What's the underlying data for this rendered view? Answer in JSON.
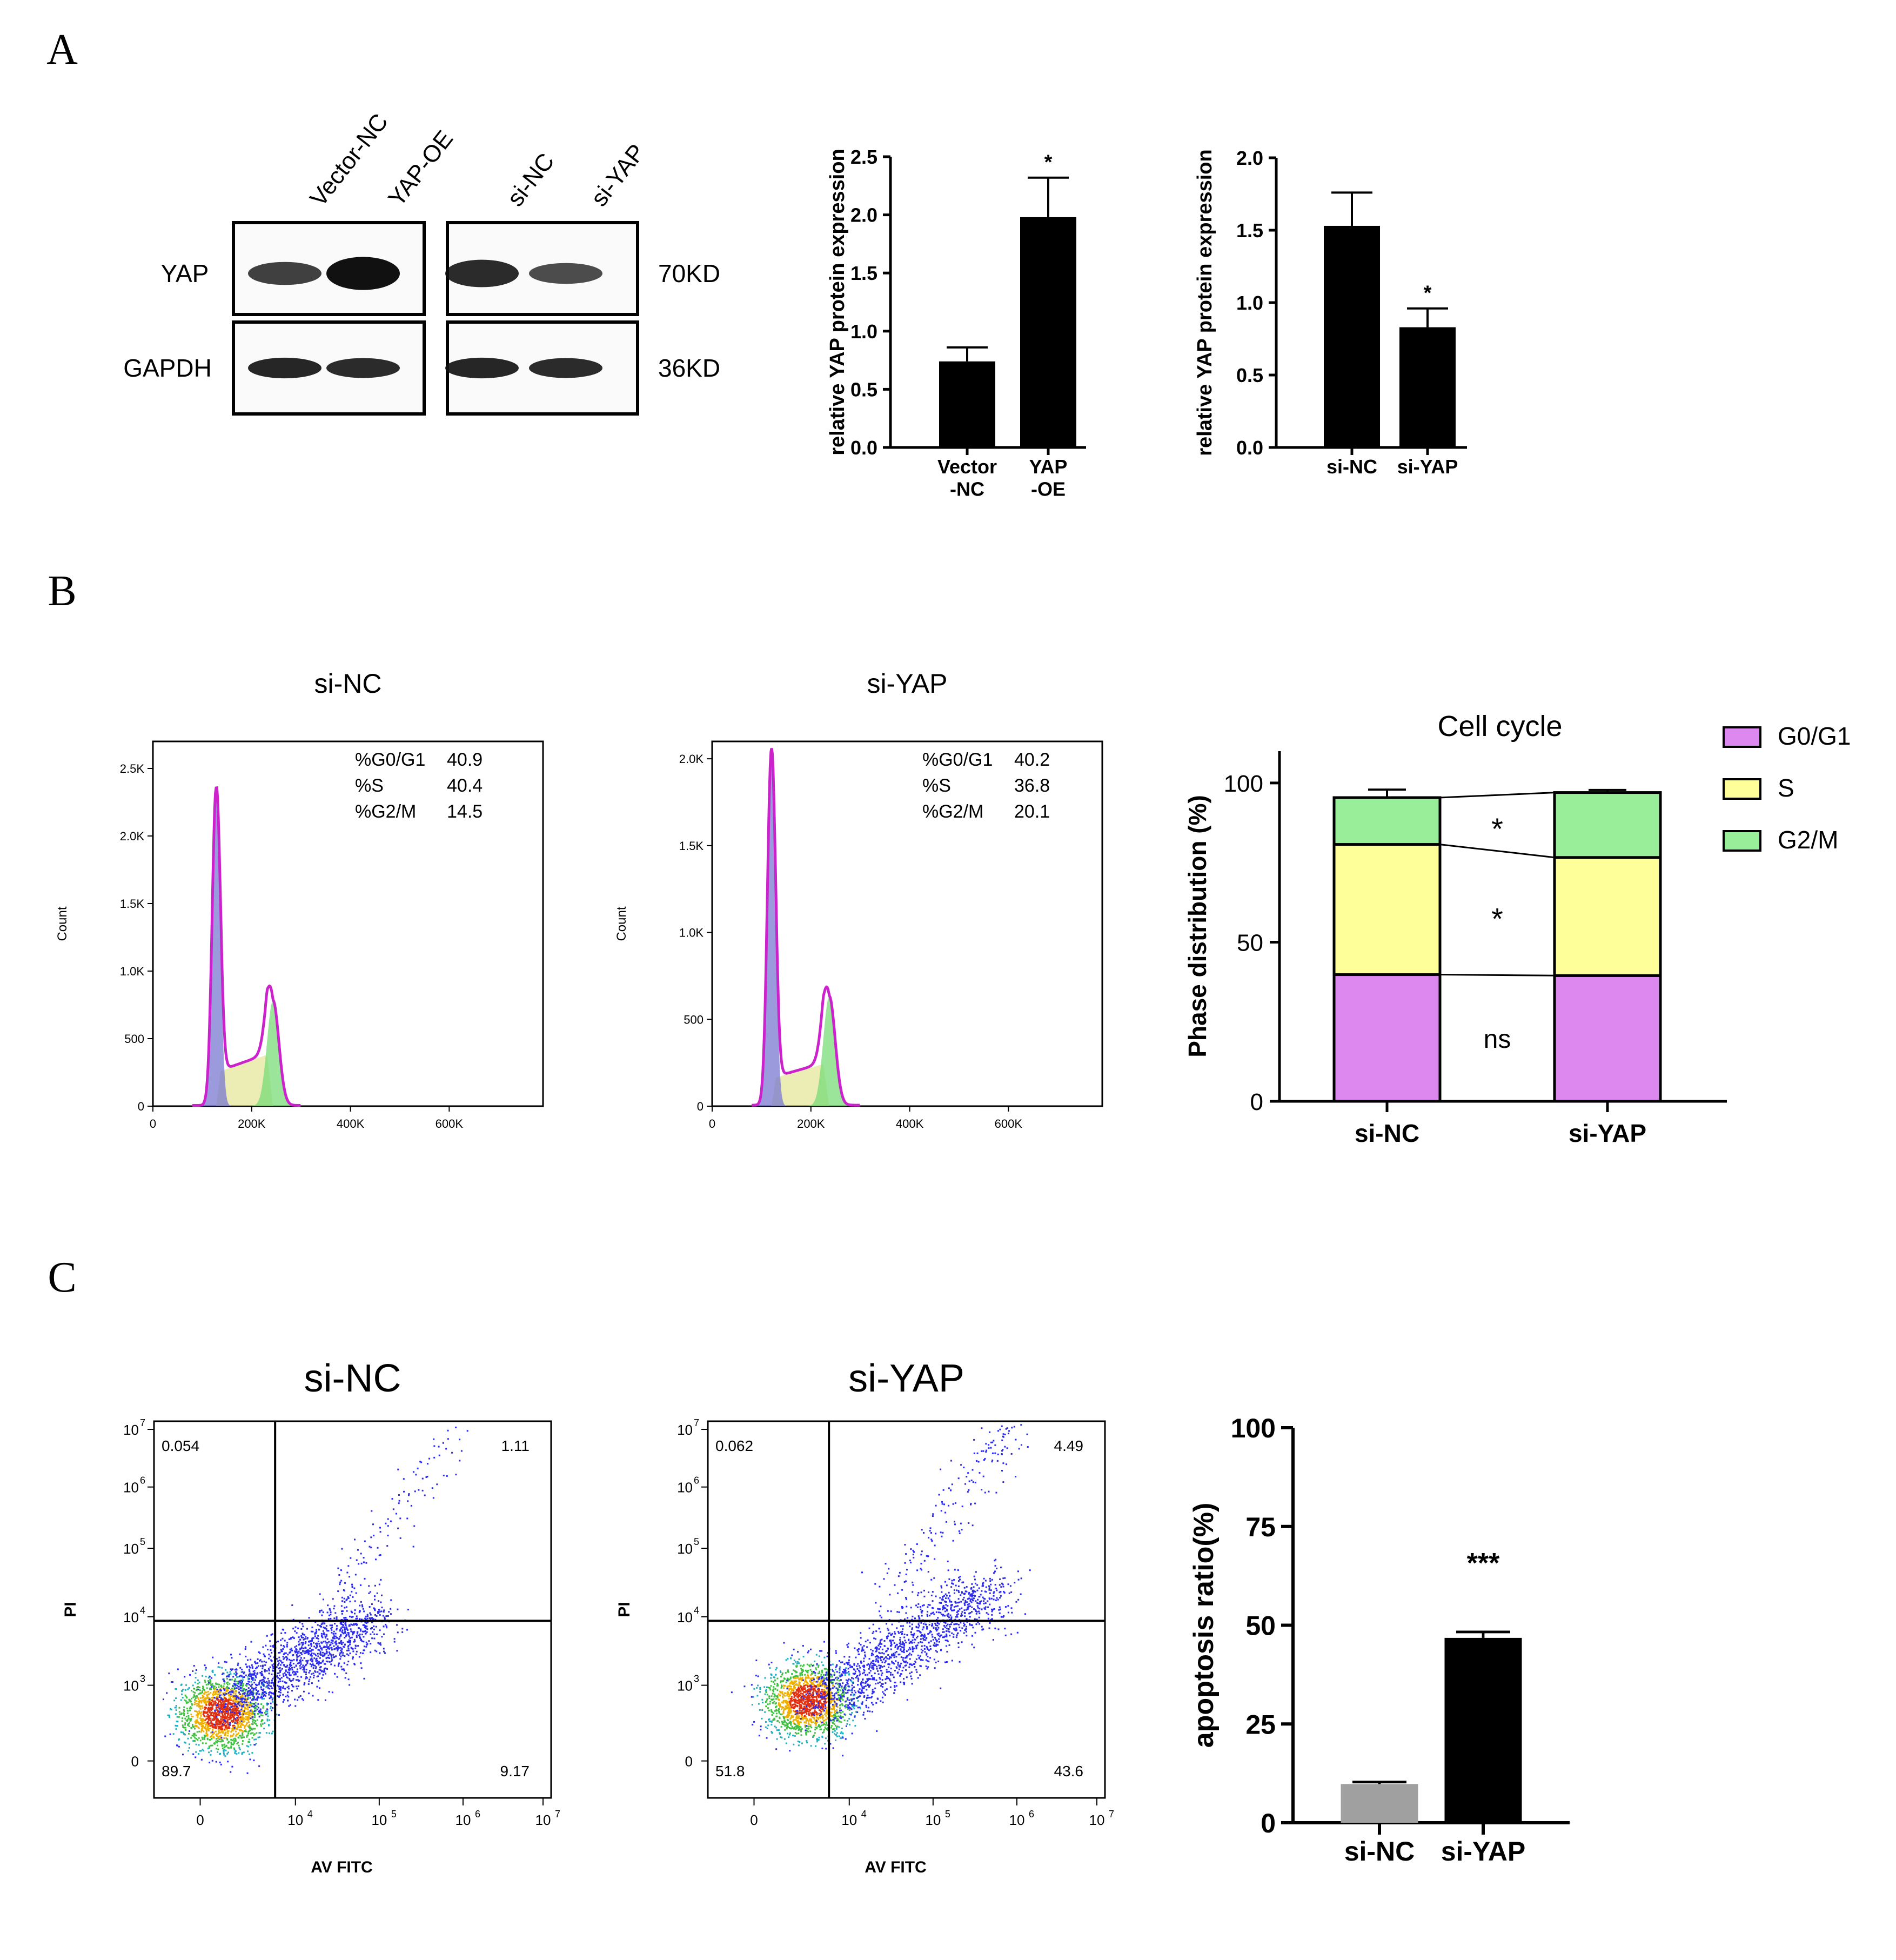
{
  "panel_labels": [
    "A",
    "B",
    "C"
  ],
  "western_blot": {
    "lanes": [
      "Vector-NC",
      "YAP-OE",
      "si-NC",
      "si-YAP"
    ],
    "rows": [
      {
        "label": "YAP",
        "kd": "70KD",
        "intensity": [
          0.55,
          1.0,
          0.75,
          0.45
        ]
      },
      {
        "label": "GAPDH",
        "kd": "36KD",
        "intensity": [
          0.8,
          0.75,
          0.8,
          0.75
        ]
      }
    ]
  },
  "chart_data": [
    {
      "id": "a1",
      "type": "bar",
      "categories": [
        "Vector\n-NC",
        "YAP\n-OE"
      ],
      "values": [
        0.74,
        1.98
      ],
      "errors": [
        0.12,
        0.34
      ],
      "colors": [
        "#000000",
        "#000000"
      ],
      "ylabel": "relative YAP protein expression",
      "ylim": [
        0,
        2.5
      ],
      "yticks": [
        0,
        0.5,
        1.0,
        1.5,
        2.0,
        2.5
      ],
      "ytick_labels": [
        "0.0",
        "0.5",
        "1.0",
        "1.5",
        "2.0",
        "2.5"
      ],
      "annotations": [
        "",
        "*"
      ]
    },
    {
      "id": "a2",
      "type": "bar",
      "categories": [
        "si-NC",
        "si-YAP"
      ],
      "values": [
        1.53,
        0.83
      ],
      "errors": [
        0.23,
        0.13
      ],
      "colors": [
        "#000000",
        "#000000"
      ],
      "ylabel": "relative YAP protein expression",
      "ylim": [
        0,
        2.0
      ],
      "yticks": [
        0,
        0.5,
        1.0,
        1.5,
        2.0
      ],
      "ytick_labels": [
        "0.0",
        "0.5",
        "1.0",
        "1.5",
        "2.0"
      ],
      "annotations": [
        "",
        "*"
      ]
    },
    {
      "id": "b1",
      "type": "area",
      "title": "si-NC",
      "ylabel": "Count",
      "ylim": [
        0,
        2700
      ],
      "yticks": [
        0,
        500,
        1000,
        1500,
        2000,
        2500
      ],
      "ytick_labels": [
        "0",
        "500",
        "1.0K",
        "1.5K",
        "2.0K",
        "2.5K"
      ],
      "xlim": [
        0,
        790000
      ],
      "xticks": [
        0,
        200000,
        400000,
        600000
      ],
      "xtick_labels": [
        "0",
        "200K",
        "400K",
        "600K"
      ],
      "peaks": {
        "g1_center": 128000,
        "g1_height": 2350,
        "g2_center": 243000,
        "g2_height": 780,
        "s_level": 330
      },
      "stats": [
        {
          "label": "%G0/G1",
          "value": "40.9"
        },
        {
          "label": "%S",
          "value": "40.4"
        },
        {
          "label": "%G2/M",
          "value": "14.5"
        }
      ]
    },
    {
      "id": "b2",
      "type": "area",
      "title": "si-YAP",
      "ylabel": "Count",
      "ylim": [
        0,
        2100
      ],
      "yticks": [
        0,
        500,
        1000,
        1500,
        2000
      ],
      "ytick_labels": [
        "0",
        "500",
        "1.0K",
        "1.5K",
        "2.0K"
      ],
      "xlim": [
        0,
        790000
      ],
      "xticks": [
        0,
        200000,
        400000,
        600000
      ],
      "xtick_labels": [
        "0",
        "200K",
        "400K",
        "600K"
      ],
      "peaks": {
        "g1_center": 120000,
        "g1_height": 2050,
        "g2_center": 237000,
        "g2_height": 630,
        "s_level": 210
      },
      "stats": [
        {
          "label": "%G0/G1",
          "value": "40.2"
        },
        {
          "label": "%S",
          "value": "36.8"
        },
        {
          "label": "%G2/M",
          "value": "20.1"
        }
      ]
    },
    {
      "id": "b3",
      "type": "bar",
      "title": "Cell cycle",
      "ylabel": "Phase distribution (%)",
      "categories": [
        "si-NC",
        "si-YAP"
      ],
      "series": [
        {
          "name": "G0/G1",
          "color": "#dd88ee",
          "values": [
            39.8,
            39.5
          ],
          "errors": [
            1.0,
            0.8
          ]
        },
        {
          "name": "S",
          "color": "#ffff99",
          "values": [
            40.9,
            37.1
          ],
          "errors": [
            1.5,
            0.8
          ]
        },
        {
          "name": "G2/M",
          "color": "#99ee99",
          "values": [
            14.7,
            20.4
          ],
          "errors": [
            2.5,
            0.8
          ]
        }
      ],
      "ylim": [
        0,
        110
      ],
      "yticks": [
        0,
        50,
        100
      ],
      "ytick_labels": [
        "0",
        "50",
        "100"
      ],
      "significance": [
        "ns",
        "*",
        "*"
      ]
    },
    {
      "id": "c1",
      "type": "scatter",
      "title": "si-NC",
      "xlabel": "AV FITC",
      "ylabel": "PI",
      "quadrants": {
        "ul": "0.054",
        "ur": "1.11",
        "ll": "89.7",
        "lr": "9.17"
      },
      "xtick_labels": [
        "0",
        "10",
        "10",
        "10",
        "10"
      ],
      "xtick_exponents": [
        "",
        "4",
        "5",
        "6",
        "7"
      ],
      "ytick_labels": [
        "0",
        "10",
        "10",
        "10",
        "10",
        "10"
      ],
      "ytick_exponents": [
        "",
        "3",
        "4",
        "5",
        "6",
        "7"
      ]
    },
    {
      "id": "c2",
      "type": "scatter",
      "title": "si-YAP",
      "xlabel": "AV FITC",
      "ylabel": "PI",
      "quadrants": {
        "ul": "0.062",
        "ur": "4.49",
        "ll": "51.8",
        "lr": "43.6"
      },
      "xtick_labels": [
        "0",
        "10",
        "10",
        "10",
        "10"
      ],
      "xtick_exponents": [
        "",
        "4",
        "5",
        "6",
        "7"
      ],
      "ytick_labels": [
        "0",
        "10",
        "10",
        "10",
        "10",
        "10"
      ],
      "ytick_exponents": [
        "",
        "3",
        "4",
        "5",
        "6",
        "7"
      ]
    },
    {
      "id": "c3",
      "type": "bar",
      "ylabel": "apoptosis ratio(%)",
      "categories": [
        "si-NC",
        "si-YAP"
      ],
      "values": [
        9.8,
        46.8
      ],
      "errors": [
        0.5,
        1.5
      ],
      "colors": [
        "#a0a0a0",
        "#000000"
      ],
      "ylim": [
        0,
        100
      ],
      "yticks": [
        0,
        25,
        50,
        75,
        100
      ],
      "ytick_labels": [
        "0",
        "25",
        "50",
        "75",
        "100"
      ],
      "annotations": [
        "",
        "***"
      ]
    }
  ]
}
